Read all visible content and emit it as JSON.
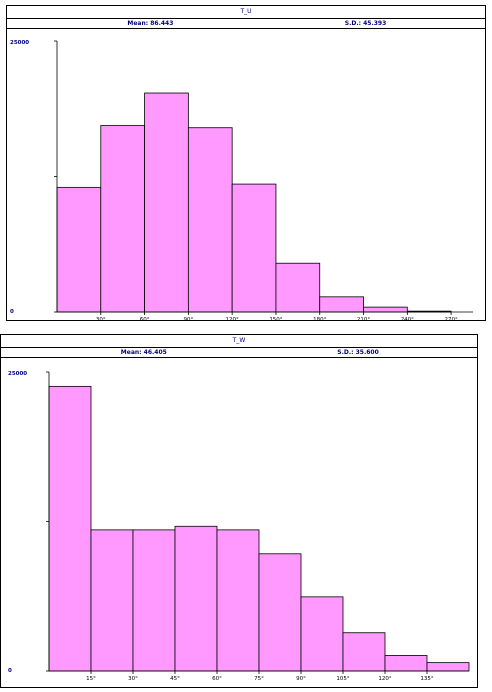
{
  "chart_data": [
    {
      "type": "bar",
      "title": "T_U",
      "mean_text": "Mean: 86.443",
      "sd_text": "S.D.: 45.393",
      "x_ticks": [
        "30°",
        "60°",
        "90°",
        "120°",
        "150°",
        "180°",
        "210°",
        "240°",
        "270°"
      ],
      "x_tick_values": [
        30,
        60,
        90,
        120,
        150,
        180,
        210,
        240,
        270
      ],
      "bins": [
        [
          0,
          30
        ],
        [
          30,
          60
        ],
        [
          60,
          90
        ],
        [
          90,
          120
        ],
        [
          120,
          150
        ],
        [
          150,
          180
        ],
        [
          180,
          210
        ],
        [
          210,
          240
        ],
        [
          240,
          270
        ]
      ],
      "values": [
        11500,
        17200,
        20200,
        17000,
        11800,
        4500,
        1400,
        450,
        80
      ],
      "xlim": [
        0,
        285
      ],
      "ylim": [
        0,
        25000
      ],
      "y_top_label": "25000",
      "y_zero_label": "0",
      "bar_color": "#ff99ff"
    },
    {
      "type": "bar",
      "title": "T_W",
      "mean_text": "Mean: 46.405",
      "sd_text": "S.D.: 35.600",
      "x_ticks": [
        "15°",
        "30°",
        "45°",
        "60°",
        "75°",
        "90°",
        "105°",
        "120°",
        "135°"
      ],
      "x_tick_values": [
        15,
        30,
        45,
        60,
        75,
        90,
        105,
        120,
        135
      ],
      "bins": [
        [
          0,
          15
        ],
        [
          15,
          30
        ],
        [
          30,
          45
        ],
        [
          45,
          60
        ],
        [
          60,
          75
        ],
        [
          75,
          90
        ],
        [
          90,
          105
        ],
        [
          105,
          120
        ],
        [
          120,
          135
        ],
        [
          135,
          150
        ]
      ],
      "values": [
        23800,
        11800,
        11800,
        12100,
        11800,
        9800,
        6200,
        3200,
        1300,
        700
      ],
      "xlim": [
        0,
        150
      ],
      "ylim": [
        0,
        25000
      ],
      "y_top_label": "25000",
      "y_zero_label": "0",
      "bar_color": "#ff99ff"
    }
  ]
}
